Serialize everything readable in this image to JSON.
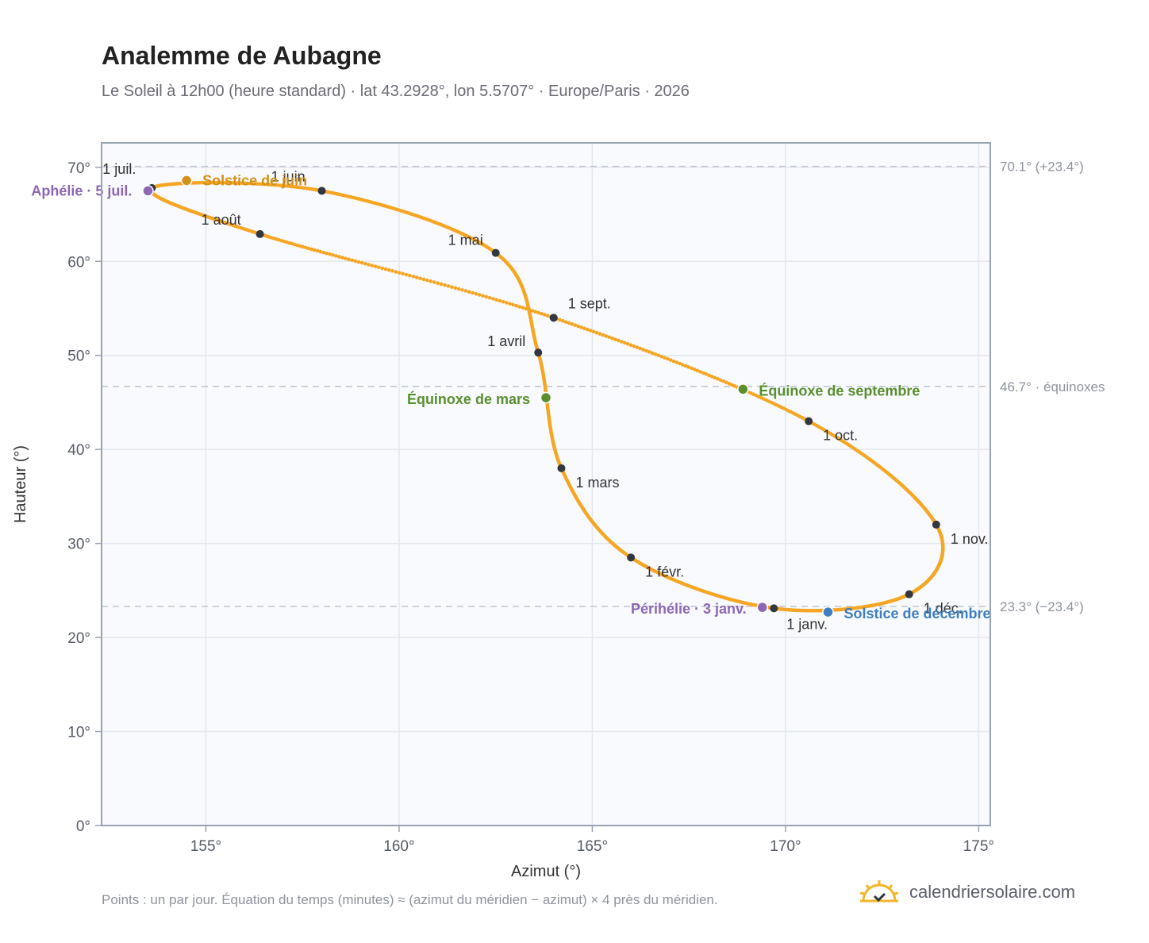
{
  "title": "Analemme de Aubagne",
  "subtitle": "Le Soleil à 12h00 (heure standard) · lat 43.2928°, lon 5.5707° · Europe/Paris · 2026",
  "footnote": "Points : un par jour. Équation du temps (minutes) ≈ (azimut du méridien − azimut) × 4 près du méridien.",
  "brand": {
    "name": "calendriersolaire.com",
    "icon": "sun-logo-icon"
  },
  "colors": {
    "curve": "#F5A623",
    "month_marker": "#333840",
    "solstice_june": "#D4911A",
    "solstice_december": "#3E7EC1",
    "equinox": "#5A8F2E",
    "apsis": "#8E67B4",
    "reference_line": "#C0C6D0",
    "plot_background": "#F8FAFD",
    "grid": "#E3E7EE",
    "frame": "#9AA3B2"
  },
  "chart_data": {
    "type": "scatter",
    "xlabel": "Azimut (°)",
    "ylabel": "Hauteur (°)",
    "xlim": [
      152.3,
      175.3
    ],
    "ylim": [
      0,
      72.6
    ],
    "xticks": [
      155,
      160,
      165,
      170,
      175
    ],
    "yticks": [
      0,
      10,
      20,
      30,
      40,
      50,
      60,
      70
    ],
    "xtick_labels": [
      "155°",
      "160°",
      "165°",
      "170°",
      "175°"
    ],
    "ytick_labels": [
      "0°",
      "10°",
      "20°",
      "30°",
      "40°",
      "50°",
      "60°",
      "70°"
    ],
    "grid": true,
    "reference_lines": [
      {
        "y": 70.1,
        "label": "70.1° (+23.4°)"
      },
      {
        "y": 46.7,
        "label": "46.7° · équinoxes"
      },
      {
        "y": 23.3,
        "label": "23.3° (−23.4°)"
      }
    ],
    "month_markers": [
      {
        "label": "1 janv.",
        "x": 169.7,
        "y": 23.1
      },
      {
        "label": "1 févr.",
        "x": 166.0,
        "y": 28.5
      },
      {
        "label": "1 mars",
        "x": 164.2,
        "y": 38.0
      },
      {
        "label": "1 avril",
        "x": 163.6,
        "y": 50.3
      },
      {
        "label": "1 mai",
        "x": 162.5,
        "y": 60.9
      },
      {
        "label": "1 juin",
        "x": 158.0,
        "y": 67.5
      },
      {
        "label": "1 juil.",
        "x": 153.6,
        "y": 67.8
      },
      {
        "label": "1 août",
        "x": 156.4,
        "y": 62.9
      },
      {
        "label": "1 sept.",
        "x": 164.0,
        "y": 54.0
      },
      {
        "label": "1 oct.",
        "x": 170.6,
        "y": 43.0
      },
      {
        "label": "1 nov.",
        "x": 173.9,
        "y": 32.0
      },
      {
        "label": "1 déc.",
        "x": 173.2,
        "y": 24.6
      }
    ],
    "events": [
      {
        "label": "Solstice de juin",
        "x": 154.5,
        "y": 68.6,
        "kind": "solstice_june"
      },
      {
        "label": "Solstice de décembre",
        "x": 171.1,
        "y": 22.7,
        "kind": "solstice_december"
      },
      {
        "label": "Équinoxe de mars",
        "x": 163.8,
        "y": 45.5,
        "kind": "equinox"
      },
      {
        "label": "Équinoxe de septembre",
        "x": 168.9,
        "y": 46.4,
        "kind": "equinox"
      },
      {
        "label": "Aphélie · 5 juil.",
        "x": 153.5,
        "y": 67.5,
        "kind": "apsis"
      },
      {
        "label": "Périhélie · 3 janv.",
        "x": 169.4,
        "y": 23.2,
        "kind": "apsis"
      }
    ]
  }
}
